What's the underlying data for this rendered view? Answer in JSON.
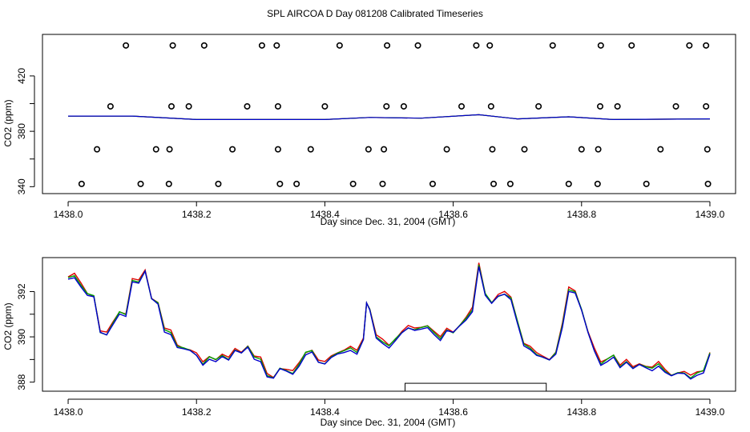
{
  "title": "SPL AIRCOA D  Day 081208  Calibrated Timeseries",
  "chart_data": [
    {
      "type": "scatter+line",
      "xlabel": "Day since Dec. 31, 2004 (GMT)",
      "ylabel": "CO2 (ppm)",
      "xlim": [
        1437.96,
        1439.04
      ],
      "ylim": [
        335,
        450
      ],
      "xticks": [
        1438.0,
        1438.2,
        1438.4,
        1438.6,
        1438.8,
        1439.0
      ],
      "xtick_labels": [
        "1438.0",
        "1438.2",
        "1438.4",
        "1438.6",
        "1438.8",
        "1439.0"
      ],
      "yticks": [
        340,
        380,
        420
      ],
      "ytick_labels": [
        "340",
        "380",
        "420"
      ],
      "ytick_minor": [
        360,
        400
      ],
      "markers": [
        {
          "level": 442,
          "x": [
            1438.09,
            1438.163,
            1438.212,
            1438.302,
            1438.325,
            1438.423,
            1438.497,
            1438.545,
            1438.636,
            1438.657,
            1438.755,
            1438.83,
            1438.878,
            1438.968,
            1438.994
          ]
        },
        {
          "level": 398,
          "x": [
            1438.066,
            1438.161,
            1438.188,
            1438.279,
            1438.327,
            1438.4,
            1438.496,
            1438.523,
            1438.613,
            1438.659,
            1438.733,
            1438.829,
            1438.856,
            1438.947,
            1438.994
          ]
        },
        {
          "level": 367,
          "x": [
            1438.045,
            1438.137,
            1438.158,
            1438.256,
            1438.327,
            1438.378,
            1438.468,
            1438.492,
            1438.59,
            1438.661,
            1438.711,
            1438.8,
            1438.826,
            1438.923,
            1438.996
          ]
        },
        {
          "level": 342,
          "x": [
            1438.021,
            1438.113,
            1438.157,
            1438.234,
            1438.33,
            1438.356,
            1438.444,
            1438.49,
            1438.568,
            1438.663,
            1438.689,
            1438.78,
            1438.825,
            1438.901,
            1438.997
          ]
        }
      ],
      "series": [
        {
          "name": "red",
          "color": "#e00000",
          "x": [
            1438.0,
            1438.1,
            1438.2,
            1438.3,
            1438.4,
            1438.47,
            1438.55,
            1438.64,
            1438.7,
            1438.78,
            1438.85,
            1439.0
          ],
          "y": [
            391,
            391,
            388.5,
            388.5,
            388.5,
            390,
            389.5,
            392,
            389,
            390.5,
            388.5,
            389
          ]
        },
        {
          "name": "green",
          "color": "#00a000",
          "x": [
            1438.0,
            1438.1,
            1438.2,
            1438.3,
            1438.4,
            1438.47,
            1438.55,
            1438.64,
            1438.7,
            1438.78,
            1438.85,
            1439.0
          ],
          "y": [
            391,
            391,
            388.5,
            388.5,
            388.5,
            390,
            389.5,
            392,
            389,
            390.5,
            388.5,
            389
          ]
        },
        {
          "name": "blue",
          "color": "#0000cc",
          "x": [
            1438.0,
            1438.1,
            1438.2,
            1438.3,
            1438.4,
            1438.47,
            1438.55,
            1438.64,
            1438.7,
            1438.78,
            1438.85,
            1439.0
          ],
          "y": [
            391,
            391,
            388.5,
            388.5,
            388.5,
            390,
            389.5,
            392,
            389,
            390.5,
            388.5,
            389
          ]
        }
      ]
    },
    {
      "type": "line",
      "xlabel": "Day since Dec. 31, 2004 (GMT)",
      "ylabel": "CO2 (ppm)",
      "xlim": [
        1437.96,
        1439.04
      ],
      "ylim": [
        387.6,
        393.5
      ],
      "xticks": [
        1438.0,
        1438.2,
        1438.4,
        1438.6,
        1438.8,
        1439.0
      ],
      "xtick_labels": [
        "1438.0",
        "1438.2",
        "1438.4",
        "1438.6",
        "1438.8",
        "1439.0"
      ],
      "yticks": [
        388,
        390,
        392
      ],
      "ytick_labels": [
        "388",
        "390",
        "392"
      ],
      "ytick_minor": [
        389,
        391
      ],
      "base_series": {
        "x": [
          1438.0,
          1438.01,
          1438.02,
          1438.03,
          1438.04,
          1438.05,
          1438.06,
          1438.07,
          1438.08,
          1438.09,
          1438.1,
          1438.11,
          1438.12,
          1438.13,
          1438.14,
          1438.15,
          1438.16,
          1438.17,
          1438.18,
          1438.19,
          1438.2,
          1438.21,
          1438.22,
          1438.23,
          1438.24,
          1438.25,
          1438.26,
          1438.27,
          1438.28,
          1438.29,
          1438.3,
          1438.31,
          1438.32,
          1438.33,
          1438.34,
          1438.35,
          1438.36,
          1438.37,
          1438.38,
          1438.39,
          1438.4,
          1438.41,
          1438.42,
          1438.43,
          1438.44,
          1438.45,
          1438.46,
          1438.465,
          1438.47,
          1438.48,
          1438.49,
          1438.5,
          1438.51,
          1438.52,
          1438.53,
          1438.54,
          1438.55,
          1438.56,
          1438.57,
          1438.58,
          1438.59,
          1438.6,
          1438.61,
          1438.62,
          1438.63,
          1438.64,
          1438.65,
          1438.66,
          1438.67,
          1438.68,
          1438.69,
          1438.7,
          1438.71,
          1438.72,
          1438.73,
          1438.74,
          1438.75,
          1438.76,
          1438.77,
          1438.78,
          1438.79,
          1438.8,
          1438.81,
          1438.82,
          1438.83,
          1438.84,
          1438.85,
          1438.86,
          1438.87,
          1438.88,
          1438.89,
          1438.9,
          1438.91,
          1438.92,
          1438.93,
          1438.94,
          1438.95,
          1438.96,
          1438.97,
          1438.98,
          1438.99,
          1439.0
        ],
        "y": [
          392.6,
          392.7,
          392.3,
          391.9,
          391.8,
          390.2,
          390.1,
          390.6,
          391.1,
          391.0,
          392.5,
          392.4,
          392.9,
          391.7,
          391.5,
          390.3,
          390.2,
          389.6,
          389.5,
          389.4,
          389.2,
          388.8,
          389.1,
          389.0,
          389.2,
          389.0,
          389.4,
          389.3,
          389.6,
          389.1,
          389.0,
          388.3,
          388.2,
          388.6,
          388.5,
          388.4,
          388.8,
          389.3,
          389.4,
          388.9,
          388.8,
          389.1,
          389.3,
          389.4,
          389.5,
          389.3,
          389.9,
          391.5,
          391.2,
          390.0,
          389.8,
          389.6,
          389.9,
          390.2,
          390.4,
          390.3,
          390.4,
          390.5,
          390.2,
          389.9,
          390.3,
          390.2,
          390.5,
          390.8,
          391.2,
          393.2,
          391.9,
          391.5,
          391.8,
          391.9,
          391.7,
          390.7,
          389.7,
          389.5,
          389.2,
          389.1,
          389.0,
          389.3,
          390.5,
          392.1,
          392.0,
          391.2,
          390.2,
          389.4,
          388.8,
          389.0,
          389.2,
          388.7,
          388.9,
          388.6,
          388.8,
          388.7,
          388.6,
          388.8,
          388.5,
          388.3,
          388.4,
          388.4,
          388.2,
          388.4,
          388.5,
          389.3
        ]
      },
      "series": [
        {
          "name": "red",
          "color": "#e00000"
        },
        {
          "name": "green",
          "color": "#00a000"
        },
        {
          "name": "blue",
          "color": "#0000cc"
        }
      ],
      "highlight_range": {
        "x": [
          1438.525,
          1438.745
        ],
        "y": [
          387.6,
          387.95
        ]
      }
    }
  ]
}
